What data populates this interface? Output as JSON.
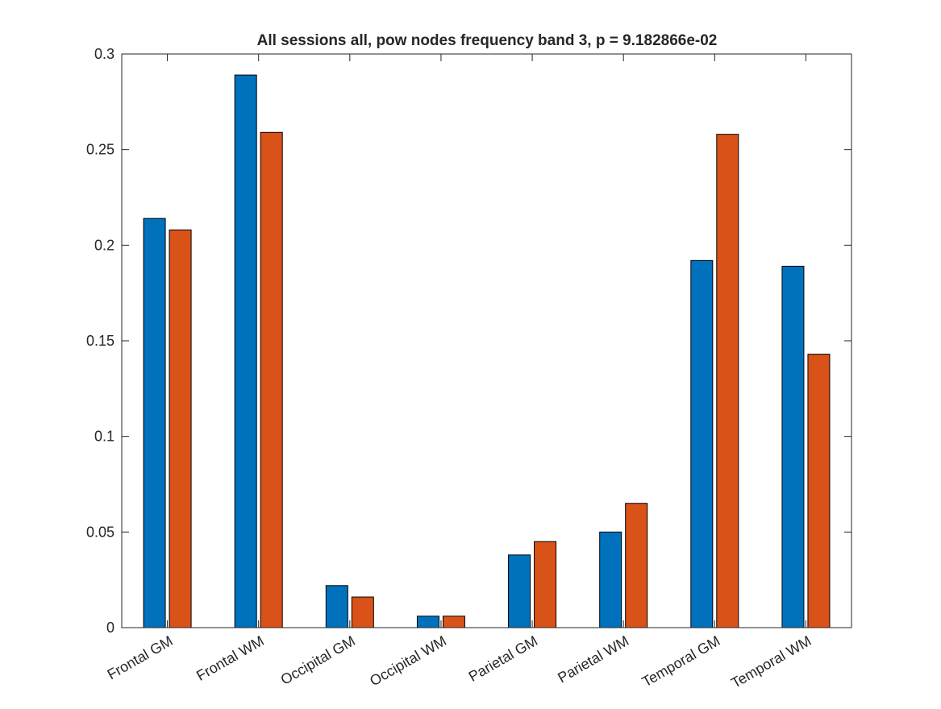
{
  "chart_data": {
    "type": "bar",
    "title": "All sessions all, pow nodes frequency band 3, p = 9.182866e-02",
    "xlabel": "",
    "ylabel": "",
    "categories": [
      "Frontal GM",
      "Frontal WM",
      "Occipital GM",
      "Occipital WM",
      "Parietal GM",
      "Parietal WM",
      "Temporal GM",
      "Temporal WM"
    ],
    "series": [
      {
        "values": [
          0.214,
          0.289,
          0.022,
          0.006,
          0.038,
          0.05,
          0.192,
          0.189
        ],
        "color": "#0072BD"
      },
      {
        "values": [
          0.208,
          0.259,
          0.016,
          0.006,
          0.045,
          0.065,
          0.258,
          0.143
        ],
        "color": "#D95319"
      }
    ],
    "ylim": [
      0,
      0.3
    ],
    "yticks": [
      0,
      0.05,
      0.1,
      0.15,
      0.2,
      0.25,
      0.3
    ],
    "ytick_labels": [
      "0",
      "0.05",
      "0.1",
      "0.15",
      "0.2",
      "0.25",
      "0.3"
    ],
    "grid": false,
    "legend": "none",
    "box": true
  }
}
